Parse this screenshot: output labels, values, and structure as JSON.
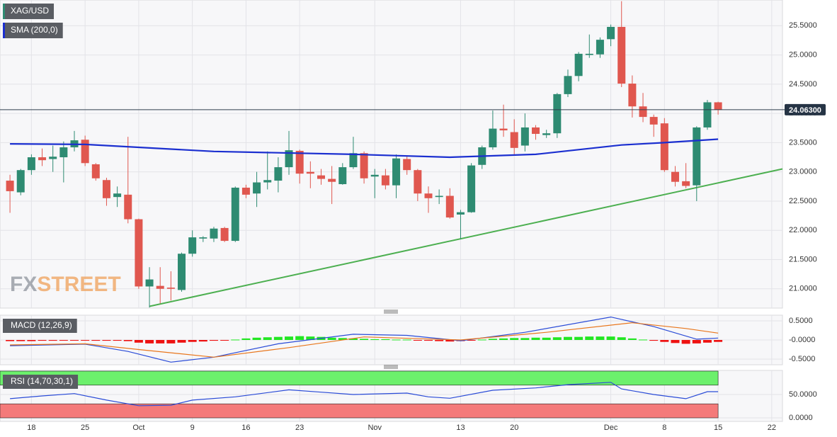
{
  "chart_data": [
    {
      "type": "candlestick",
      "title": "XAG/USD",
      "xlim": [
        -0.93,
        72
      ],
      "xticks": [
        {
          "value": 2,
          "label": "18"
        },
        {
          "value": 7,
          "label": "25"
        },
        {
          "value": 12,
          "label": "Oct"
        },
        {
          "value": 17,
          "label": "9"
        },
        {
          "value": 22,
          "label": "16"
        },
        {
          "value": 27,
          "label": "23"
        },
        {
          "value": 34,
          "label": "Nov"
        },
        {
          "value": 42,
          "label": "13"
        },
        {
          "value": 47,
          "label": "20"
        },
        {
          "value": 56,
          "label": "Dec"
        },
        {
          "value": 61,
          "label": "8"
        },
        {
          "value": 66,
          "label": "15"
        },
        {
          "value": 71,
          "label": "22"
        }
      ],
      "ylim": [
        20.67,
        25.94
      ],
      "yticks": [
        {
          "value": 21,
          "label": "21.0000"
        },
        {
          "value": 21.5,
          "label": "21.5000"
        },
        {
          "value": 22,
          "label": "22.0000"
        },
        {
          "value": 22.5,
          "label": "22.5000"
        },
        {
          "value": 23,
          "label": "23.0000"
        },
        {
          "value": 23.5,
          "label": "23.5000"
        },
        {
          "value": 24,
          "label": "24.0000"
        },
        {
          "value": 24.5,
          "label": "24.5000"
        },
        {
          "value": 25,
          "label": "25.0000"
        },
        {
          "value": 25.5,
          "label": "25.5000"
        }
      ],
      "grid": true,
      "up_color": "#2e8b72",
      "down_color": "#e0574f",
      "open": [
        22.85,
        22.65,
        23.03,
        23.25,
        23.22,
        23.25,
        23.42,
        23.55,
        23.13,
        22.86,
        22.57,
        22.61,
        22.19,
        21.04,
        21.05,
        21.02,
        20.98,
        21.6,
        21.86,
        21.86,
        22.04,
        21.82,
        22.73,
        22.63,
        22.82,
        22.85,
        23.08,
        23.36,
        23.0,
        22.94,
        22.88,
        22.79,
        23.08,
        23.32,
        22.92,
        22.94,
        22.77,
        23.22,
        23.03,
        22.63,
        22.57,
        22.59,
        22.27,
        22.31,
        23.12,
        23.42,
        23.74,
        23.68,
        23.45,
        23.76,
        23.63,
        23.66,
        24.33,
        24.64,
        25.0,
        25.01,
        25.27,
        25.48,
        24.51,
        24.12,
        23.94,
        23.83,
        23.0,
        22.84,
        22.77,
        23.76,
        24.19
      ],
      "high": [
        22.95,
        23.05,
        23.3,
        23.4,
        23.45,
        23.52,
        23.7,
        23.62,
        23.15,
        22.9,
        22.75,
        23.6,
        22.2,
        21.37,
        21.37,
        21.3,
        21.62,
        22.0,
        21.9,
        22.06,
        22.06,
        22.75,
        22.78,
        23.0,
        23.35,
        23.25,
        23.7,
        23.38,
        23.18,
        23.05,
        23.1,
        23.15,
        23.6,
        23.35,
        23.05,
        23.05,
        23.3,
        23.28,
        23.05,
        22.75,
        22.7,
        22.72,
        22.35,
        23.15,
        23.45,
        24.05,
        24.15,
        23.9,
        24.0,
        23.8,
        23.72,
        24.35,
        24.75,
        25.05,
        25.35,
        25.3,
        25.52,
        25.92,
        24.65,
        24.35,
        23.98,
        23.92,
        23.1,
        23.15,
        23.78,
        24.23,
        24.2
      ],
      "low": [
        22.3,
        22.6,
        22.95,
        23.1,
        23.0,
        22.82,
        23.35,
        23.1,
        22.85,
        22.42,
        22.4,
        22.12,
        21.0,
        20.68,
        20.75,
        20.8,
        20.95,
        21.55,
        21.8,
        21.8,
        21.8,
        21.8,
        22.55,
        22.4,
        22.7,
        22.65,
        22.95,
        22.8,
        22.72,
        22.78,
        22.45,
        22.78,
        23.05,
        22.8,
        22.55,
        22.7,
        22.55,
        22.95,
        22.5,
        22.3,
        22.45,
        22.2,
        21.85,
        22.3,
        23.05,
        23.38,
        23.6,
        23.3,
        23.35,
        23.55,
        23.58,
        23.58,
        24.28,
        24.55,
        24.95,
        24.95,
        25.15,
        24.45,
        23.93,
        23.85,
        23.6,
        23.0,
        22.75,
        22.72,
        22.5,
        23.72,
        23.98
      ],
      "close": [
        22.67,
        23.03,
        23.25,
        23.2,
        23.26,
        23.42,
        23.54,
        23.15,
        22.89,
        22.55,
        22.63,
        22.19,
        21.04,
        21.16,
        21.0,
        21.0,
        21.6,
        21.88,
        21.88,
        22.03,
        21.82,
        22.73,
        22.61,
        22.82,
        22.86,
        23.08,
        23.37,
        22.97,
        22.97,
        22.88,
        22.83,
        23.08,
        23.32,
        22.89,
        22.95,
        22.77,
        23.23,
        23.03,
        22.63,
        22.55,
        22.59,
        22.22,
        22.31,
        23.11,
        23.42,
        23.74,
        23.71,
        23.41,
        23.76,
        23.65,
        23.66,
        24.33,
        24.64,
        25.02,
        25.02,
        25.26,
        25.48,
        24.51,
        24.12,
        23.94,
        23.81,
        23.03,
        22.83,
        22.76,
        23.76,
        24.19,
        24.06
      ],
      "last_price": {
        "value": 24.063,
        "label": "24.06300"
      },
      "series": [
        {
          "name": "SMA (200,0)",
          "color": "#1b2fd0",
          "x": [
            0,
            7,
            19,
            32,
            41,
            49,
            57,
            61,
            66
          ],
          "values": [
            23.48,
            23.47,
            23.35,
            23.3,
            23.25,
            23.3,
            23.46,
            23.5,
            23.56
          ]
        }
      ],
      "trendline": {
        "color": "#4caf50",
        "x": [
          13,
          72
        ],
        "values": [
          20.7,
          23.05
        ]
      },
      "watermark": [
        "FX",
        "STREET"
      ]
    },
    {
      "type": "macd",
      "title": "MACD (12,26,9)",
      "ylim": [
        -0.648,
        0.648
      ],
      "yticks": [
        {
          "value": 0.5,
          "label": "0.5000"
        },
        {
          "value": 0,
          "label": "-0.0000"
        },
        {
          "value": -0.5,
          "label": "-0.5000"
        }
      ],
      "histogram": {
        "up_color": "#22e622",
        "down_color": "#ee1111",
        "values": [
          -0.03,
          -0.03,
          -0.03,
          -0.02,
          -0.02,
          -0.01,
          -0.01,
          -0.01,
          -0.02,
          -0.02,
          -0.02,
          -0.03,
          -0.07,
          -0.09,
          -0.09,
          -0.09,
          -0.07,
          -0.05,
          -0.04,
          -0.02,
          -0.01,
          0.01,
          0.04,
          0.06,
          0.07,
          0.08,
          0.09,
          0.1,
          0.09,
          0.08,
          0.06,
          0.05,
          0.04,
          0.03,
          0.02,
          0.02,
          0.01,
          0.01,
          -0.01,
          -0.02,
          -0.03,
          -0.04,
          -0.03,
          -0.01,
          0.01,
          0.03,
          0.04,
          0.05,
          0.05,
          0.06,
          0.06,
          0.07,
          0.08,
          0.08,
          0.09,
          0.09,
          0.09,
          0.07,
          0.04,
          0.01,
          -0.02,
          -0.05,
          -0.08,
          -0.1,
          -0.09,
          -0.07,
          -0.05
        ]
      },
      "series": [
        {
          "color": "#2a4bd7",
          "x": [
            0,
            7,
            11,
            15,
            19,
            25,
            32,
            37,
            42,
            48,
            56,
            60,
            64,
            66
          ],
          "values": [
            -0.15,
            -0.11,
            -0.3,
            -0.58,
            -0.45,
            -0.1,
            0.15,
            0.12,
            -0.02,
            0.2,
            0.6,
            0.35,
            0.02,
            0.05
          ]
        },
        {
          "color": "#e8761c",
          "x": [
            0,
            7,
            12,
            19,
            26,
            33,
            42,
            50,
            58,
            63,
            66
          ],
          "values": [
            -0.13,
            -0.1,
            -0.25,
            -0.45,
            -0.2,
            0.08,
            0.0,
            0.2,
            0.45,
            0.3,
            0.18
          ]
        }
      ]
    },
    {
      "type": "rsi",
      "title": "RSI (14,70,30,1)",
      "ylim": [
        -7.6,
        101.5
      ],
      "yticks": [
        {
          "value": 50,
          "label": "50.0000"
        },
        {
          "value": 0,
          "label": "0.0000"
        }
      ],
      "zones": [
        {
          "from": 70,
          "to": 100,
          "color": "#6cf06c"
        },
        {
          "from": 0,
          "to": 30,
          "color": "#f47a7a"
        }
      ],
      "series": [
        {
          "color": "#2a4bd7",
          "x": [
            0,
            3,
            6,
            9,
            12,
            15,
            17,
            21,
            26,
            29,
            32,
            37,
            39,
            41,
            45,
            49,
            52,
            56,
            57,
            60,
            63,
            65,
            66
          ],
          "values": [
            41,
            47,
            52,
            38,
            26,
            27,
            38,
            45,
            60,
            55,
            50,
            53,
            45,
            42,
            59,
            64,
            71,
            76,
            62,
            50,
            41,
            56,
            56
          ]
        }
      ]
    }
  ]
}
